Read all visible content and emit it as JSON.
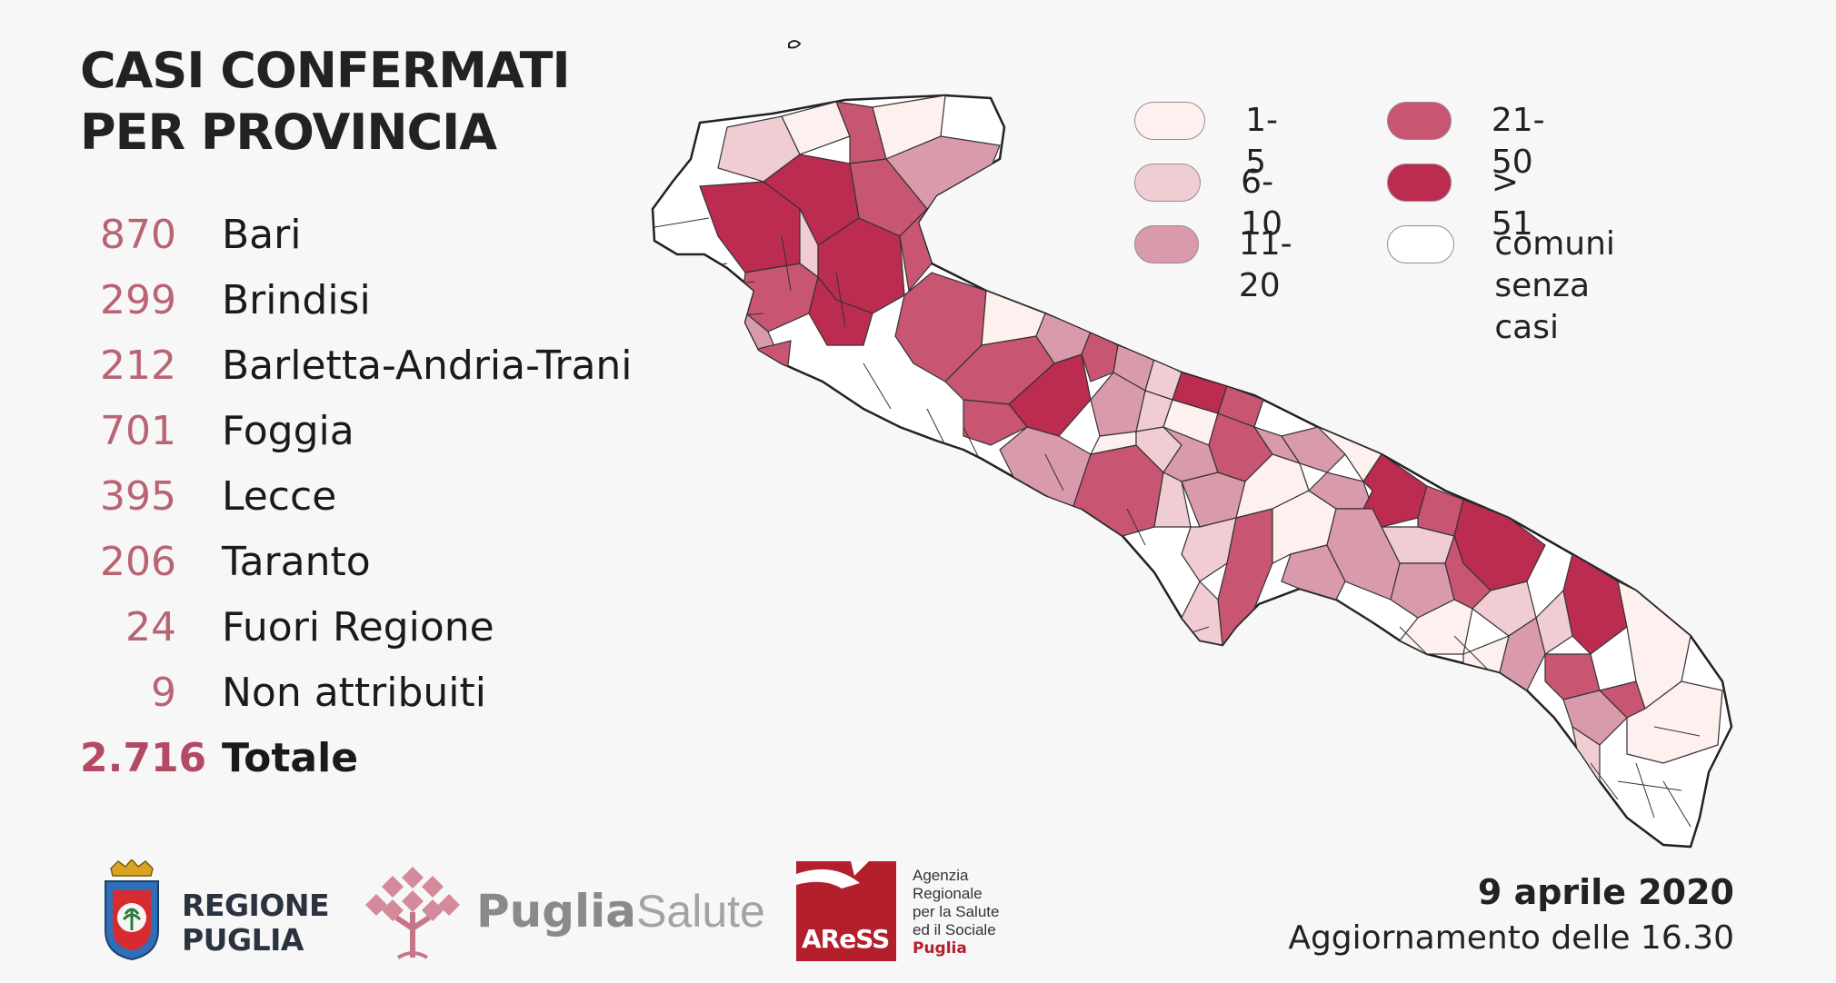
{
  "title": {
    "line1": "CASI CONFERMATI",
    "line2": "PER PROVINCIA"
  },
  "provinces": [
    {
      "value": "870",
      "name": "Bari"
    },
    {
      "value": "299",
      "name": "Brindisi"
    },
    {
      "value": "212",
      "name": "Barletta-Andria-Trani"
    },
    {
      "value": "701",
      "name": "Foggia"
    },
    {
      "value": "395",
      "name": "Lecce"
    },
    {
      "value": "206",
      "name": "Taranto"
    },
    {
      "value": "24",
      "name": "Fuori Regione"
    },
    {
      "value": "9",
      "name": "Non attribuiti"
    }
  ],
  "total": {
    "value": "2.716",
    "name": "Totale"
  },
  "legend": [
    {
      "label": "1-5",
      "color": "#fdf0ee"
    },
    {
      "label": "6-10",
      "color": "#f0cdd3"
    },
    {
      "label": "11-20",
      "color": "#d99aab"
    },
    {
      "label": "21-50",
      "color": "#c85572"
    },
    {
      "label": "> 51",
      "color": "#bc2c50"
    },
    {
      "label_line1": "comuni",
      "label_line2": "senza casi",
      "color": "#ffffff"
    }
  ],
  "map": {
    "colors": {
      "none": "#ffffff",
      "c1": "#fdf0ee",
      "c2": "#f0cdd3",
      "c3": "#d99aab",
      "c4": "#c85572",
      "c5": "#bc2c50"
    }
  },
  "footer": {
    "date": "9 aprile 2020",
    "update": "Aggiornamento delle 16.30",
    "regione_line1": "REGIONE",
    "regione_line2": "PUGLIA",
    "puglia_bold": "Puglia",
    "puglia_light": "Salute",
    "aress": "AReSS",
    "agenzia_line1": "Agenzia",
    "agenzia_line2": "Regionale",
    "agenzia_line3": "per la Salute",
    "agenzia_line4": "ed il Sociale",
    "agenzia_line5": "Puglia"
  }
}
